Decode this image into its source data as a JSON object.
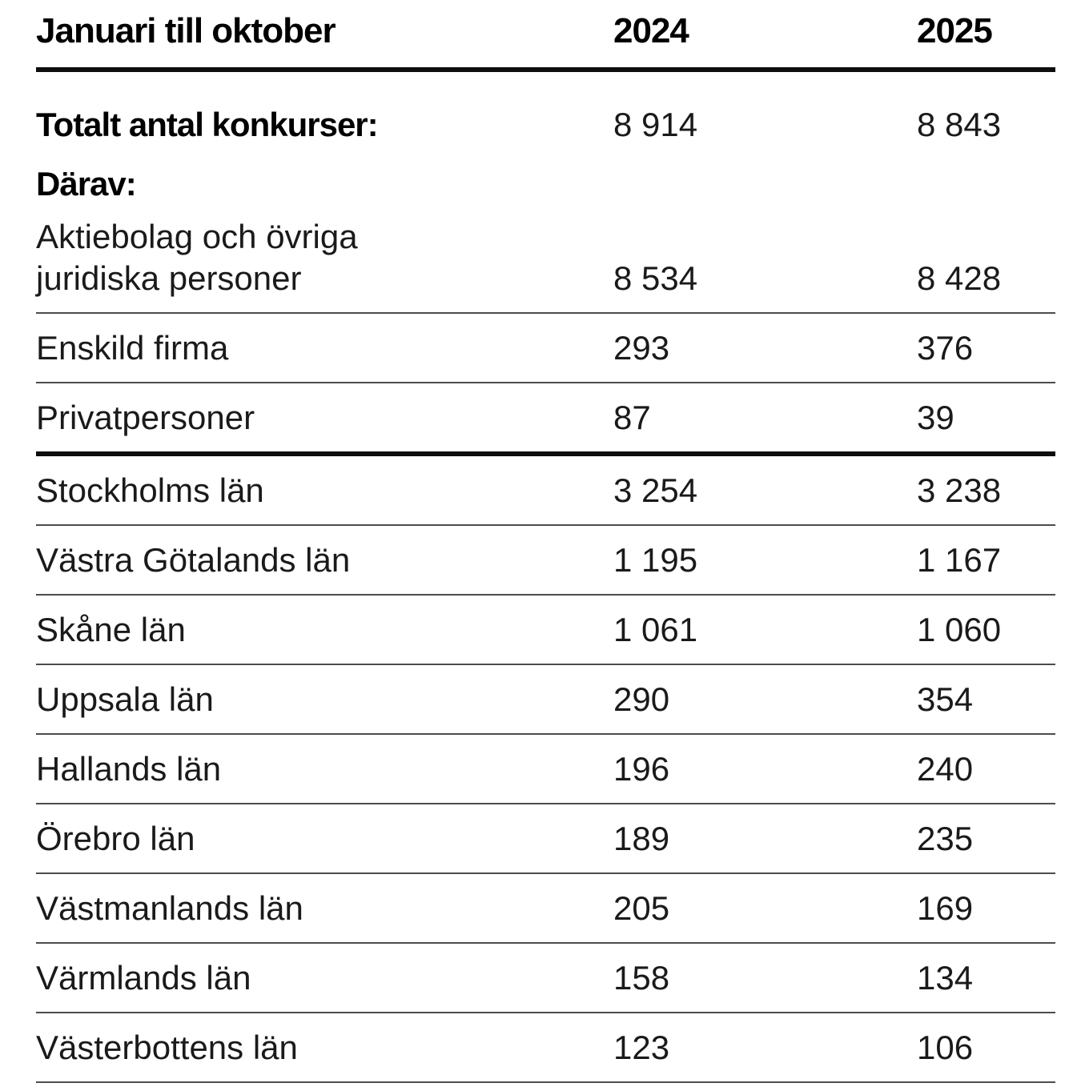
{
  "page": {
    "background": "#ffffff",
    "text_color": "#1a1a1a",
    "rule_thick_color": "#0d0d0d",
    "rule_thin_color": "#4c4c4c"
  },
  "table": {
    "header": {
      "title": "Januari till oktober",
      "col_2024": "2024",
      "col_2025": "2025"
    },
    "rows": [
      {
        "label": "Totalt antal konkurser:",
        "y2024": "8 914",
        "y2025": "8 843"
      },
      {
        "label": "Därav:",
        "y2024": "",
        "y2025": ""
      },
      {
        "label": "Aktiebolag och övriga juridiska personer",
        "label_line1": "Aktiebolag och övriga",
        "label_line2": "juridiska personer",
        "y2024": "8 534",
        "y2025": "8 428"
      },
      {
        "label": "Enskild firma",
        "y2024": "293",
        "y2025": "376"
      },
      {
        "label": "Privatpersoner",
        "y2024": "87",
        "y2025": "39"
      },
      {
        "label": "Stockholms län",
        "y2024": "3 254",
        "y2025": "3 238"
      },
      {
        "label": "Västra Götalands län",
        "y2024": "1 195",
        "y2025": "1 167"
      },
      {
        "label": "Skåne län",
        "y2024": "1 061",
        "y2025": "1 060"
      },
      {
        "label": "Uppsala län",
        "y2024": "290",
        "y2025": "354"
      },
      {
        "label": "Hallands län",
        "y2024": "196",
        "y2025": "240"
      },
      {
        "label": "Örebro län",
        "y2024": "189",
        "y2025": "235"
      },
      {
        "label": "Västmanlands län",
        "y2024": "205",
        "y2025": "169"
      },
      {
        "label": "Värmlands län",
        "y2024": "158",
        "y2025": "134"
      },
      {
        "label": "Västerbottens län",
        "y2024": "123",
        "y2025": "106"
      }
    ]
  },
  "chart_data": {
    "type": "table",
    "title": "Januari till oktober",
    "columns": [
      "2024",
      "2025"
    ],
    "rows": [
      {
        "label": "Totalt antal konkurser:",
        "2024": 8914,
        "2025": 8843
      },
      {
        "label": "Därav:",
        "2024": null,
        "2025": null
      },
      {
        "label": "Aktiebolag och övriga juridiska personer",
        "2024": 8534,
        "2025": 8428
      },
      {
        "label": "Enskild firma",
        "2024": 293,
        "2025": 376
      },
      {
        "label": "Privatpersoner",
        "2024": 87,
        "2025": 39
      },
      {
        "label": "Stockholms län",
        "2024": 3254,
        "2025": 3238
      },
      {
        "label": "Västra Götalands län",
        "2024": 1195,
        "2025": 1167
      },
      {
        "label": "Skåne län",
        "2024": 1061,
        "2025": 1060
      },
      {
        "label": "Uppsala län",
        "2024": 290,
        "2025": 354
      },
      {
        "label": "Hallands län",
        "2024": 196,
        "2025": 240
      },
      {
        "label": "Örebro län",
        "2024": 189,
        "2025": 235
      },
      {
        "label": "Västmanlands län",
        "2024": 205,
        "2025": 169
      },
      {
        "label": "Värmlands län",
        "2024": 158,
        "2025": 134
      },
      {
        "label": "Västerbottens län",
        "2024": 123,
        "2025": 106
      }
    ]
  }
}
